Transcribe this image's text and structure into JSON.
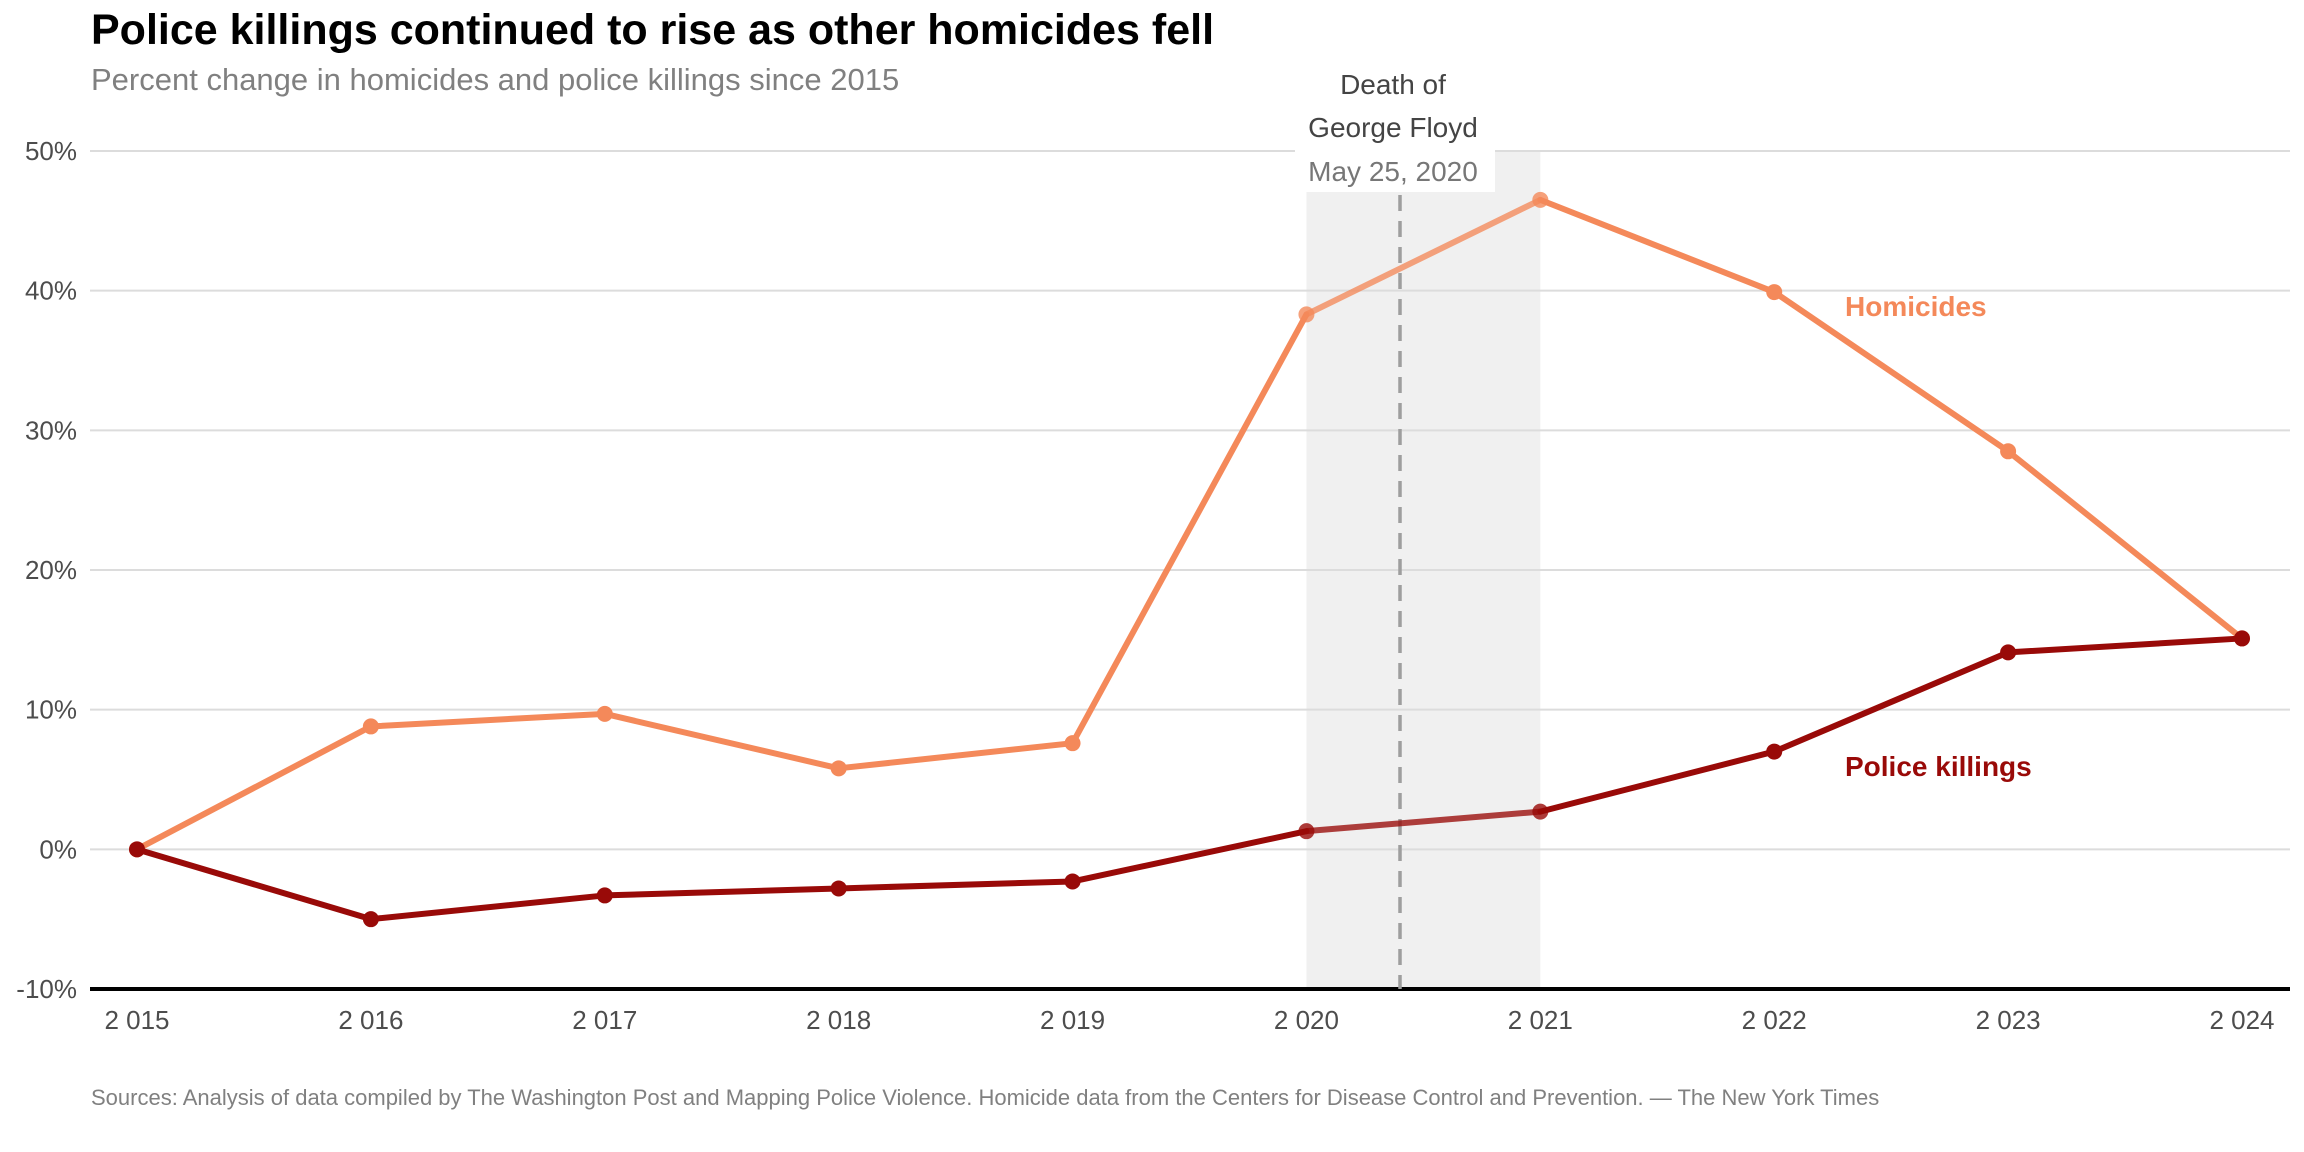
{
  "chart_data": {
    "type": "line",
    "title": "Police killings continued to rise as other homicides fell",
    "subtitle": "Percent change in homicides and police killings since 2015",
    "xlabel": "",
    "ylabel": "",
    "x": [
      "2 015",
      "2 016",
      "2 017",
      "2 018",
      "2 019",
      "2 020",
      "2 021",
      "2 022",
      "2 023",
      "2 024"
    ],
    "y_ticks": [
      "-10%",
      "0%",
      "10%",
      "20%",
      "30%",
      "40%",
      "50%"
    ],
    "y_tick_values": [
      -10,
      0,
      10,
      20,
      30,
      40,
      50
    ],
    "ylim": [
      -10,
      50
    ],
    "grid": "horizontal",
    "series": [
      {
        "name": "Homicides",
        "color": "#f4895a",
        "values": [
          0,
          8.8,
          9.7,
          5.8,
          7.6,
          38.3,
          46.5,
          39.9,
          28.5,
          15.1
        ]
      },
      {
        "name": "Police killings",
        "color": "#990a08",
        "values": [
          0,
          -5.0,
          -3.3,
          -2.8,
          -2.3,
          1.3,
          2.7,
          7.0,
          14.1,
          15.1
        ]
      }
    ],
    "shaded_region": {
      "x_start": "2 020",
      "x_end": "2 021",
      "color": "#f0f0f0"
    },
    "annotation": {
      "line1": "Death of",
      "line2": "George Floyd",
      "date": "May 25, 2020",
      "x_value": 2020.4
    },
    "source": "Sources: Analysis of data compiled by The Washington Post and Mapping Police Violence. Homicide data from the Centers for Disease Control and Prevention. — The New York Times"
  }
}
